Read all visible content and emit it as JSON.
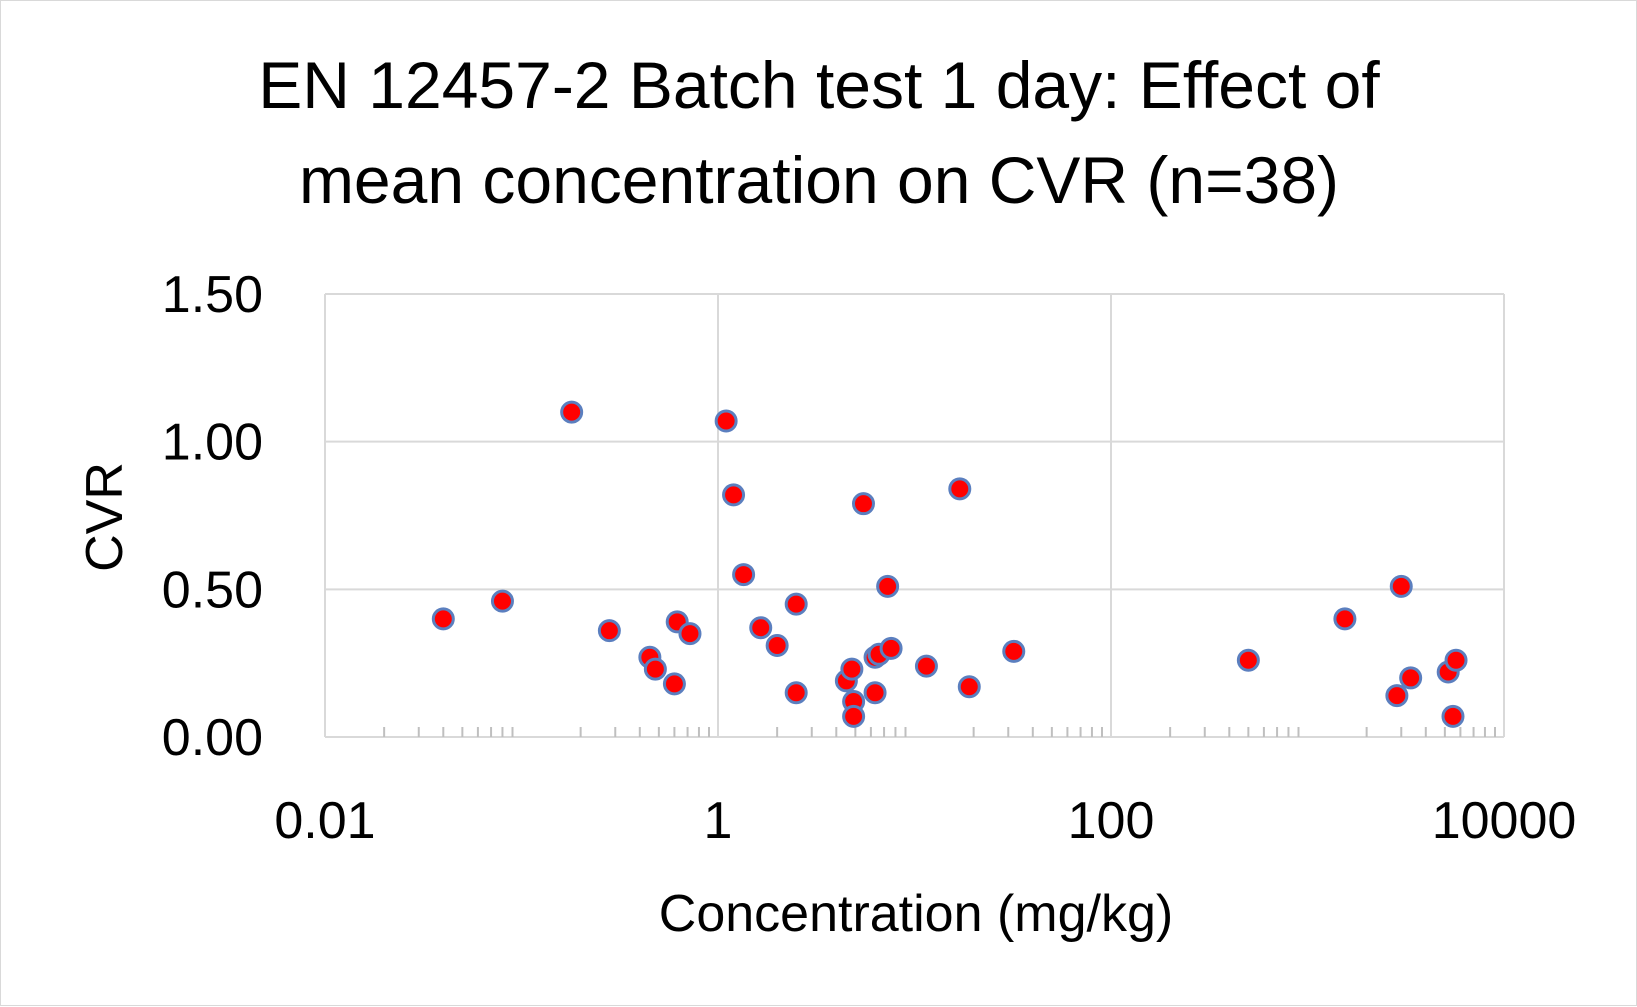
{
  "chart_data": {
    "type": "scatter",
    "title_lines": [
      "EN 12457-2 Batch test 1 day: Effect of",
      "mean concentration on CVR (n=38)"
    ],
    "xlabel": "Concentration (mg/kg)",
    "ylabel": "CVR",
    "x_scale": "log10",
    "xlim": [
      0.01,
      10000
    ],
    "ylim": [
      0,
      1.5
    ],
    "x_ticks": [
      0.01,
      1,
      100,
      10000
    ],
    "x_tick_labels": [
      "0.01",
      "1",
      "100",
      "10000"
    ],
    "y_ticks": [
      0,
      0.5,
      1.0,
      1.5
    ],
    "y_tick_labels": [
      "0.00",
      "0.50",
      "1.00",
      "1.50"
    ],
    "grid": true,
    "legend": "none",
    "marker_fill": "#ff0000",
    "marker_edge": "#5b7fbf",
    "points": [
      {
        "x": 0.04,
        "y": 0.4
      },
      {
        "x": 0.08,
        "y": 0.46
      },
      {
        "x": 0.18,
        "y": 1.1
      },
      {
        "x": 0.28,
        "y": 0.36
      },
      {
        "x": 0.45,
        "y": 0.27
      },
      {
        "x": 0.48,
        "y": 0.23
      },
      {
        "x": 0.6,
        "y": 0.18
      },
      {
        "x": 0.62,
        "y": 0.39
      },
      {
        "x": 0.72,
        "y": 0.35
      },
      {
        "x": 1.1,
        "y": 1.07
      },
      {
        "x": 1.2,
        "y": 0.82
      },
      {
        "x": 1.35,
        "y": 0.55
      },
      {
        "x": 1.65,
        "y": 0.37
      },
      {
        "x": 2.0,
        "y": 0.31
      },
      {
        "x": 2.5,
        "y": 0.45
      },
      {
        "x": 2.5,
        "y": 0.15
      },
      {
        "x": 4.5,
        "y": 0.19
      },
      {
        "x": 4.8,
        "y": 0.23
      },
      {
        "x": 4.9,
        "y": 0.12
      },
      {
        "x": 4.9,
        "y": 0.07
      },
      {
        "x": 5.5,
        "y": 0.79
      },
      {
        "x": 6.3,
        "y": 0.27
      },
      {
        "x": 6.3,
        "y": 0.15
      },
      {
        "x": 6.6,
        "y": 0.28
      },
      {
        "x": 7.3,
        "y": 0.51
      },
      {
        "x": 7.6,
        "y": 0.3
      },
      {
        "x": 11.5,
        "y": 0.24
      },
      {
        "x": 17.0,
        "y": 0.84
      },
      {
        "x": 19.0,
        "y": 0.17
      },
      {
        "x": 32.0,
        "y": 0.29
      },
      {
        "x": 500,
        "y": 0.26
      },
      {
        "x": 1550,
        "y": 0.4
      },
      {
        "x": 2850,
        "y": 0.14
      },
      {
        "x": 3000,
        "y": 0.51
      },
      {
        "x": 3350,
        "y": 0.2
      },
      {
        "x": 5200,
        "y": 0.22
      },
      {
        "x": 5500,
        "y": 0.07
      },
      {
        "x": 5700,
        "y": 0.26
      }
    ]
  }
}
